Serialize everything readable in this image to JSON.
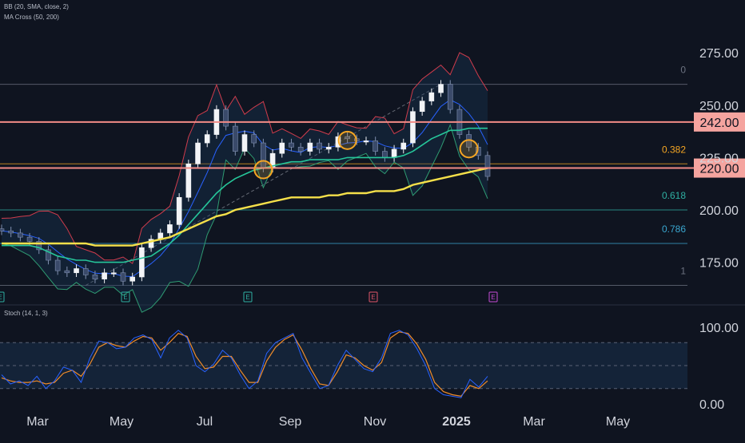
{
  "indicators": {
    "bb_label": "BB (20, SMA, close, 2)",
    "ma_label": "MA Cross (50, 200)",
    "stoch_label": "Stoch (14, 1, 3)"
  },
  "colors": {
    "background": "#0f1420",
    "candle_up": "#f2f4f7",
    "candle_down": "#3a4a6a",
    "bb_band": "#d03c4c",
    "bb_basis": "#2962ff",
    "ma50": "#26c69a",
    "ma200": "#f5e04a",
    "sr_line": "#f28b86",
    "sr_label_bg": "#f5a49f",
    "fib_gray": "#6c7280",
    "fib_orange": "#f5a623",
    "fib_teal": "#2fb0a3",
    "fib_cyan": "#3aa7d0",
    "circle": "#f5a623",
    "stoch_k": "#2962ff",
    "stoch_d": "#f08c2a",
    "axis_text": "#d1d4dc"
  },
  "chart_data": {
    "type": "line",
    "title": "",
    "x_ticks": [
      "Mar",
      "May",
      "Jul",
      "Sep",
      "Nov",
      "2025",
      "Mar",
      "May"
    ],
    "y_ticks": [
      "275.00",
      "250.00",
      "225.00",
      "200.00",
      "175.00"
    ],
    "ylim": [
      160,
      285
    ],
    "price_labels": [
      "242.00",
      "220.00"
    ],
    "support_resistance": [
      242,
      220
    ],
    "fib_levels": [
      {
        "label": "0",
        "value": 260
      },
      {
        "label": "0.382",
        "value": 222
      },
      {
        "label": "0.618",
        "value": 200
      },
      {
        "label": "0.786",
        "value": 184
      },
      {
        "label": "1",
        "value": 164
      }
    ],
    "earnings_markers": [
      "E",
      "E",
      "E",
      "E",
      "E"
    ],
    "series": [
      {
        "name": "Price",
        "values": [
          190,
          189,
          187,
          185,
          181,
          176,
          171,
          170,
          172,
          169,
          167,
          170,
          170,
          166,
          168,
          182,
          186,
          189,
          193,
          206,
          222,
          232,
          236,
          248,
          240,
          228,
          236,
          232,
          220,
          227,
          232,
          230,
          228,
          232,
          229,
          230,
          235,
          234,
          233,
          233,
          228,
          225,
          229,
          232,
          247,
          252,
          256,
          260,
          248,
          236,
          230,
          226,
          216
        ]
      },
      {
        "name": "MA 200",
        "values": [
          184,
          184,
          184,
          184,
          184,
          184,
          184,
          184,
          184,
          184,
          183,
          183,
          183,
          183,
          183,
          184,
          185,
          186,
          187,
          189,
          191,
          193,
          195,
          197,
          198,
          200,
          201,
          202,
          203,
          204,
          205,
          206,
          206,
          206,
          206,
          207,
          207,
          208,
          208,
          208,
          209,
          209,
          209,
          210,
          212,
          213,
          214,
          215,
          216,
          217,
          218,
          219,
          220
        ]
      },
      {
        "name": "MA 50",
        "values": [
          183,
          183,
          183,
          183,
          182,
          180,
          178,
          177,
          176,
          176,
          175,
          175,
          175,
          175,
          176,
          177,
          178,
          181,
          184,
          188,
          193,
          198,
          203,
          208,
          212,
          215,
          217,
          219,
          220,
          221,
          222,
          223,
          223,
          224,
          224,
          224,
          224,
          225,
          225,
          225,
          225,
          225,
          225,
          226,
          228,
          231,
          234,
          236,
          238,
          238,
          239,
          239,
          239
        ]
      }
    ],
    "stoch_panel": {
      "y_ticks": [
        "100.00",
        "0.00"
      ],
      "ylim": [
        0,
        100
      ],
      "band": [
        80,
        20
      ],
      "k_values": [
        38,
        26,
        30,
        24,
        36,
        20,
        30,
        48,
        44,
        28,
        60,
        82,
        80,
        72,
        74,
        86,
        90,
        84,
        60,
        86,
        96,
        86,
        50,
        42,
        52,
        70,
        60,
        38,
        20,
        30,
        66,
        80,
        86,
        92,
        60,
        40,
        20,
        24,
        50,
        70,
        58,
        46,
        42,
        60,
        92,
        96,
        90,
        72,
        50,
        20,
        12,
        10,
        8,
        32,
        22,
        36
      ],
      "d_values": [
        34,
        30,
        28,
        28,
        30,
        26,
        28,
        40,
        44,
        36,
        52,
        74,
        80,
        76,
        74,
        82,
        88,
        86,
        70,
        80,
        92,
        88,
        62,
        46,
        48,
        62,
        62,
        44,
        28,
        28,
        56,
        74,
        84,
        90,
        70,
        46,
        26,
        24,
        42,
        64,
        60,
        50,
        44,
        54,
        86,
        94,
        92,
        78,
        58,
        28,
        16,
        12,
        10,
        24,
        20,
        30
      ]
    }
  }
}
